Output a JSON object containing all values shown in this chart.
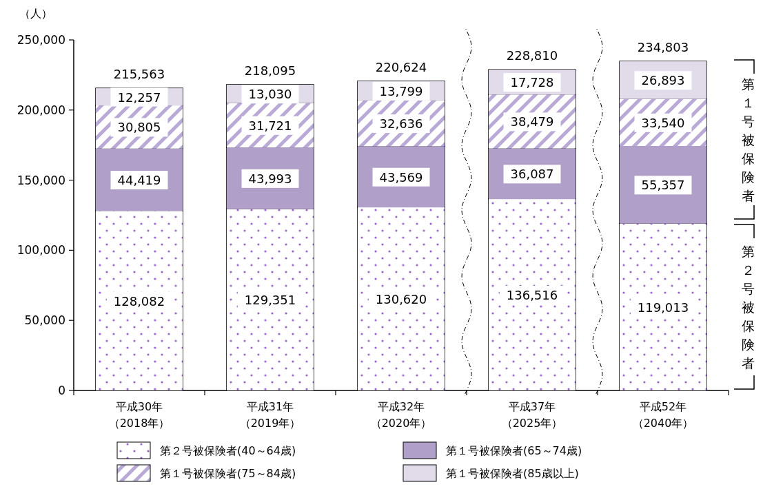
{
  "chart_data": {
    "type": "bar",
    "stacked": true,
    "ylabel": "（人）",
    "categories": [
      "平成30年（2018年）",
      "平成31年（2019年）",
      "平成32年（2020年）",
      "平成37年（2025年）",
      "平成52年（2040年）"
    ],
    "series": [
      {
        "name": "第２号被保険者(40～64歳)",
        "color": "#9966cc",
        "values": [
          128082,
          129351,
          130620,
          136516,
          119013
        ],
        "value_labels": [
          "128,082",
          "129,351",
          "130,620",
          "136,516",
          "119,013"
        ]
      },
      {
        "name": "第１号被保険者(65～74歳)",
        "color": "#b09fc8",
        "values": [
          44419,
          43993,
          43569,
          36087,
          55357
        ],
        "value_labels": [
          "44,419",
          "43,993",
          "43,569",
          "36,087",
          "55,357"
        ]
      },
      {
        "name": "第１号被保険者(75～84歳)",
        "color": "#b8a9d6",
        "values": [
          30805,
          31721,
          32636,
          38479,
          33540
        ],
        "value_labels": [
          "30,805",
          "31,721",
          "32,636",
          "38,479",
          "33,540"
        ]
      },
      {
        "name": "第１号被保険者(85歳以上)",
        "color": "#e2dcea",
        "values": [
          12257,
          13030,
          13799,
          17728,
          26893
        ],
        "value_labels": [
          "12,257",
          "13,030",
          "13,799",
          "17,728",
          "26,893"
        ]
      }
    ],
    "totals": [
      "215,563",
      "218,095",
      "220,624",
      "228,810",
      "234,803"
    ],
    "ylim": [
      0,
      250000
    ],
    "yticks": [
      {
        "value": 0,
        "label": "0"
      },
      {
        "value": 50000,
        "label": "50,000"
      },
      {
        "value": 100000,
        "label": "100,000"
      },
      {
        "value": 150000,
        "label": "150,000"
      },
      {
        "value": 200000,
        "label": "200,000"
      },
      {
        "value": 250000,
        "label": "250,000"
      }
    ],
    "annotations": [
      "第１号被保険者",
      "第２号被保険者"
    ],
    "legend": "bottom",
    "grid": false
  }
}
